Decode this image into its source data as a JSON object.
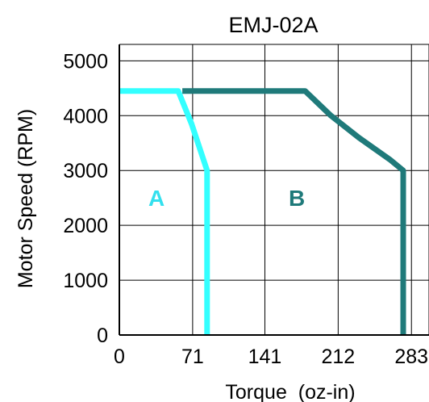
{
  "chart_data": {
    "type": "line",
    "title": "EMJ-02A",
    "xlabel": "Torque  (oz-in)",
    "ylabel": "Motor Speed (RPM)",
    "xlim": [
      0,
      300
    ],
    "ylim": [
      0,
      5300
    ],
    "x_ticks": [
      0,
      71,
      141,
      212,
      283
    ],
    "x_gridlines": [
      0,
      71,
      141,
      212,
      283,
      300
    ],
    "y_ticks": [
      0,
      1000,
      2000,
      3000,
      4000,
      5000
    ],
    "grid": true,
    "series": [
      {
        "name": "B",
        "color": "#1f7a7a",
        "points": [
          [
            61,
            4450
          ],
          [
            180,
            4450
          ],
          [
            205,
            4000
          ],
          [
            232,
            3600
          ],
          [
            262,
            3200
          ],
          [
            275,
            3000
          ],
          [
            275,
            0
          ]
        ]
      },
      {
        "name": "A",
        "color": "#33ffff",
        "points": [
          [
            0,
            4450
          ],
          [
            57,
            4450
          ],
          [
            70,
            3850
          ],
          [
            85,
            3000
          ],
          [
            85,
            0
          ]
        ]
      }
    ],
    "region_labels": [
      {
        "text": "A",
        "x": 36,
        "y": 2500,
        "color": "#33e0ee"
      },
      {
        "text": "B",
        "x": 172,
        "y": 2500,
        "color": "#1f7a7a"
      }
    ]
  }
}
